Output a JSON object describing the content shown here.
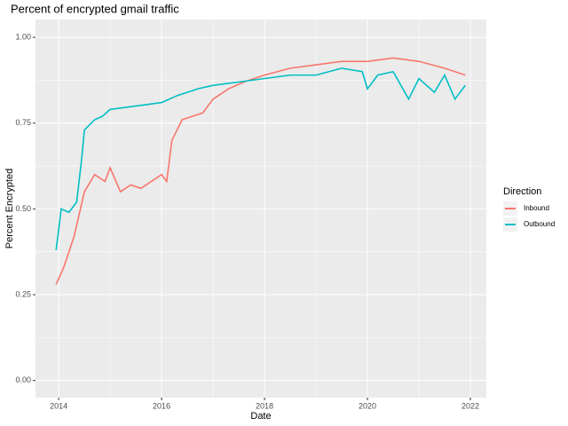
{
  "chart_data": {
    "type": "line",
    "title": "Percent of encrypted gmail traffic",
    "x_label": "Date",
    "y_label": "Percent Encrypted",
    "legend_title": "Direction",
    "legend_position": "right",
    "grid": true,
    "xlim": [
      2013.55,
      2022.31
    ],
    "xticks": [
      2014,
      2016,
      2018,
      2020,
      2022
    ],
    "ylim": [
      -0.05,
      1.052
    ],
    "yticks": [
      {
        "value": 0,
        "label": "0.00"
      },
      {
        "value": 0.25,
        "label": "0.25"
      },
      {
        "value": 0.5,
        "label": "0.50"
      },
      {
        "value": 0.75,
        "label": "0.75"
      },
      {
        "value": 1,
        "label": "1.00"
      }
    ],
    "series": [
      {
        "name": "Inbound",
        "color": "#F8766D",
        "x": [
          2013.95,
          2014.1,
          2014.3,
          2014.5,
          2014.7,
          2014.9,
          2015.0,
          2015.2,
          2015.4,
          2015.6,
          2015.8,
          2016.0,
          2016.1,
          2016.2,
          2016.4,
          2016.6,
          2016.8,
          2017.0,
          2017.3,
          2017.6,
          2018.0,
          2018.5,
          2019.0,
          2019.5,
          2020.0,
          2020.5,
          2021.0,
          2021.5,
          2021.9
        ],
        "values": [
          0.28,
          0.33,
          0.42,
          0.55,
          0.6,
          0.58,
          0.62,
          0.55,
          0.57,
          0.56,
          0.58,
          0.6,
          0.58,
          0.7,
          0.76,
          0.77,
          0.78,
          0.82,
          0.85,
          0.87,
          0.89,
          0.91,
          0.92,
          0.93,
          0.93,
          0.94,
          0.93,
          0.91,
          0.89
        ]
      },
      {
        "name": "Outbound",
        "color": "#00BFC4",
        "x": [
          2013.95,
          2014.05,
          2014.2,
          2014.35,
          2014.45,
          2014.5,
          2014.7,
          2014.85,
          2015.0,
          2015.5,
          2016.0,
          2016.3,
          2016.7,
          2017.0,
          2017.5,
          2018.0,
          2018.5,
          2019.0,
          2019.5,
          2019.9,
          2020.0,
          2020.2,
          2020.5,
          2020.8,
          2021.0,
          2021.3,
          2021.5,
          2021.7,
          2021.9
        ],
        "values": [
          0.38,
          0.5,
          0.49,
          0.52,
          0.65,
          0.73,
          0.76,
          0.77,
          0.79,
          0.8,
          0.81,
          0.83,
          0.85,
          0.86,
          0.87,
          0.88,
          0.89,
          0.89,
          0.91,
          0.9,
          0.85,
          0.89,
          0.9,
          0.82,
          0.88,
          0.84,
          0.89,
          0.82,
          0.86
        ]
      }
    ]
  }
}
